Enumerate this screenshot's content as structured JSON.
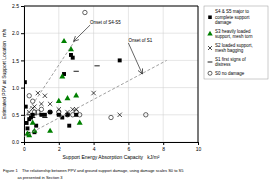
{
  "chart_data": {
    "type": "scatter",
    "xlabel": "Support Energy Absorption Capacity   kJ/m²",
    "ylabel": "Estimated PPV at Support Location   m/s",
    "xlim": [
      0,
      10
    ],
    "ylim": [
      0,
      2.5
    ],
    "xticks": [
      0,
      2,
      4,
      6,
      8,
      10
    ],
    "yticks": [
      {
        "value": 0.0,
        "label": "0.0"
      },
      0.5,
      {
        "value": 1.0,
        "label": "1.0"
      },
      1.5,
      {
        "value": 2.0,
        "label": "2.0"
      },
      2.5
    ],
    "grid": true,
    "series": [
      {
        "name": "S4 & S5 major to\ncomplete support\ndamage",
        "color": "black",
        "marker": "square",
        "x": [
          0.05,
          0.1,
          0.15,
          0.2,
          0.25,
          0.3,
          0.4,
          0.5,
          0.6,
          0.7,
          1.0,
          1.2,
          1.5,
          2.0,
          2.2,
          2.3,
          2.5,
          2.6,
          2.7,
          2.8,
          3.0,
          5.5
        ],
        "values": [
          1.1,
          0.65,
          0.35,
          0.25,
          0.15,
          0.42,
          0.45,
          0.5,
          0.18,
          0.3,
          0.5,
          0.5,
          0.55,
          0.5,
          0.45,
          1.25,
          0.5,
          0.3,
          1.6,
          1.55,
          0.5,
          1.5
        ]
      },
      {
        "name": "S3 heavily loaded\nsupport, mesh torn",
        "color": "green",
        "marker": "triangle",
        "x": [
          0.2,
          0.3,
          0.5,
          0.6,
          1.5,
          2.0,
          2.2,
          2.3,
          2.5,
          2.7,
          3.0,
          3.2
        ],
        "values": [
          0.15,
          0.12,
          0.35,
          0.2,
          0.2,
          0.75,
          1.2,
          1.85,
          0.8,
          1.7,
          0.85,
          0.35
        ]
      },
      {
        "name": "S2 loaded support,\nmesh bagging",
        "color": "black",
        "marker": "x",
        "x": [
          0.3,
          0.5,
          0.6,
          0.8,
          1.0,
          1.2,
          1.5,
          2.0,
          2.5,
          2.8,
          3.0,
          4.0,
          5.5
        ],
        "values": [
          0.55,
          0.62,
          0.65,
          0.9,
          0.7,
          0.85,
          0.7,
          0.6,
          0.55,
          0.6,
          0.6,
          0.9,
          0.5
        ]
      },
      {
        "name": "S1 first signs of\ndistress",
        "color": "black",
        "marker": "dash",
        "x": [
          0.3,
          0.5,
          0.6,
          1.0,
          1.2,
          1.5,
          2.0,
          2.5,
          3.0,
          4.2
        ],
        "values": [
          0.5,
          0.45,
          0.5,
          0.5,
          0.45,
          0.55,
          0.5,
          0.5,
          1.3,
          1.4
        ]
      },
      {
        "name": "S0 no damage",
        "color": "black",
        "marker": "circle-open",
        "x": [
          0.3,
          0.5,
          0.6,
          0.8,
          1.0,
          1.5,
          2.0,
          2.5,
          2.8,
          3.0,
          3.2,
          3.5,
          5.0,
          7.0
        ],
        "values": [
          0.85,
          0.75,
          0.55,
          0.55,
          0.6,
          0.55,
          0.55,
          0.5,
          0.5,
          0.55,
          0.5,
          2.38,
          0.45,
          0.5
        ]
      },
      {
        "type": "line",
        "line_style": "dashed",
        "color": "#888888",
        "x": [
          0,
          2.9
        ],
        "values": [
          0.45,
          1.85
        ]
      },
      {
        "type": "line",
        "line_style": "dashed",
        "color": "#888888",
        "x": [
          0,
          8.2
        ],
        "values": [
          0.1,
          1.5
        ]
      }
    ],
    "annotations": [
      {
        "text": "Onset of S4-S5",
        "xy": [
          2.85,
          1.85
        ],
        "xytext": [
          3.8,
          2.15
        ]
      },
      {
        "text": "Onset of S1",
        "xy": [
          6.8,
          1.25
        ],
        "xytext": [
          6.0,
          1.82
        ]
      }
    ],
    "caption": [
      "Figure 1    The relationship between PPV and ground support damage, using damage scales S0 to S5",
      "             as presented in Section 3"
    ]
  }
}
